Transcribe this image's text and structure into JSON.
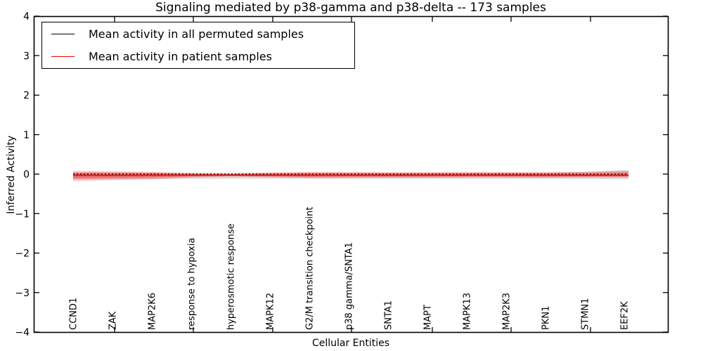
{
  "chart_data": {
    "type": "line",
    "title": "Signaling mediated by p38-gamma and p38-delta -- 173 samples",
    "xlabel": "Cellular Entities",
    "ylabel": "Inferred Activity",
    "ylim": [
      -4,
      4
    ],
    "yticks": [
      4,
      3,
      2,
      1,
      0,
      -1,
      -2,
      -3,
      -4
    ],
    "ytick_labels": [
      "4",
      "3",
      "2",
      "1",
      "0",
      "−1",
      "−2",
      "−3",
      "−4"
    ],
    "categories": [
      "CCND1",
      "ZAK",
      "MAP2K6",
      "response to hypoxia",
      "hyperosmotic response",
      "MAPK12",
      "G2/M transition checkpoint",
      "p38 gamma/SNTA1",
      "SNTA1",
      "MAPT",
      "MAPK13",
      "MAP2K3",
      "PKN1",
      "STMN1",
      "EEF2K"
    ],
    "grid": false,
    "legend_position": "upper left",
    "series": [
      {
        "name": "Mean activity in all permuted samples",
        "color": "#000000",
        "line_style": "dashed",
        "values": [
          0,
          0,
          0,
          0,
          0,
          0,
          0,
          0,
          0,
          0,
          0,
          0,
          0,
          0,
          0
        ],
        "band_upper": [
          0.04,
          0.04,
          0.038,
          0.034,
          0.03,
          0.034,
          0.038,
          0.04,
          0.04,
          0.04,
          0.04,
          0.04,
          0.045,
          0.06,
          0.1
        ],
        "band_lower": [
          -0.13,
          -0.13,
          -0.125,
          -0.12,
          -0.115,
          -0.115,
          -0.12,
          -0.12,
          -0.12,
          -0.12,
          -0.12,
          -0.12,
          -0.12,
          -0.12,
          -0.13
        ],
        "band_color": "#000000",
        "band_opacity": 0.15
      },
      {
        "name": "Mean activity in patient samples",
        "color": "#ff0000",
        "line_style": "solid",
        "values": [
          -0.03,
          -0.03,
          -0.028,
          -0.028,
          -0.028,
          -0.028,
          -0.028,
          -0.028,
          -0.028,
          -0.028,
          -0.028,
          -0.028,
          -0.028,
          -0.03,
          -0.03
        ],
        "band_upper": [
          0.08,
          0.07,
          0.055,
          0.02,
          0.012,
          0.04,
          0.053,
          0.05,
          0.045,
          0.045,
          0.048,
          0.048,
          0.045,
          0.053,
          0.075
        ],
        "band_lower": [
          -0.17,
          -0.15,
          -0.13,
          -0.085,
          -0.057,
          -0.078,
          -0.096,
          -0.092,
          -0.089,
          -0.089,
          -0.085,
          -0.085,
          -0.089,
          -0.08,
          -0.082
        ],
        "band_color": "#ff0000",
        "band_opacity": 0.25
      }
    ]
  }
}
